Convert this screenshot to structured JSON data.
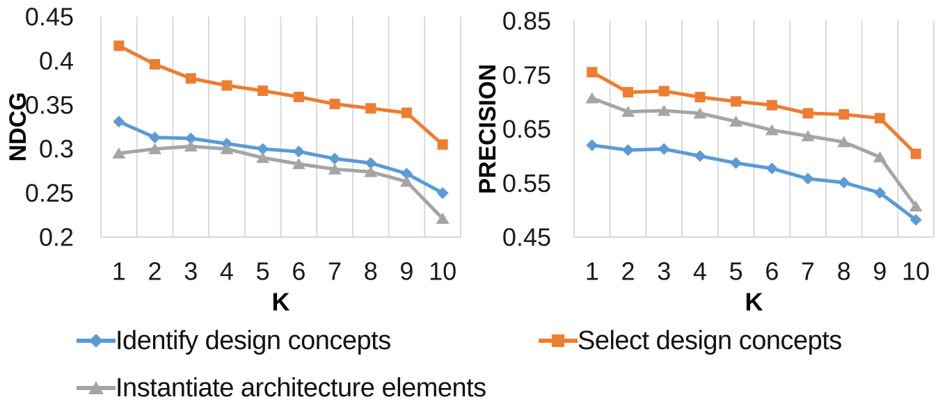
{
  "figure": {
    "background": "#ffffff"
  },
  "colors": {
    "blue": "#5B9BD5",
    "orange": "#ED7D31",
    "gray": "#A5A5A5",
    "gridline": "#D9D9D9",
    "axis_line": "#D9D9D9",
    "tick_text": "#1a1a1a",
    "title_text": "#000000"
  },
  "legend": {
    "position": "bottom",
    "items": [
      {
        "label": "Identify design concepts",
        "marker": "diamond",
        "color": "#5B9BD5"
      },
      {
        "label": "Select design concepts",
        "marker": "square",
        "color": "#ED7D31"
      },
      {
        "label": "Instantiate architecture elements",
        "marker": "triangle",
        "color": "#A5A5A5"
      }
    ]
  },
  "chart_data": [
    {
      "type": "line",
      "title": "",
      "xlabel": "K",
      "ylabel": "NDCG",
      "x": [
        1,
        2,
        3,
        4,
        5,
        6,
        7,
        8,
        9,
        10
      ],
      "xtick_labels": [
        "1",
        "2",
        "3",
        "4",
        "5",
        "6",
        "7",
        "8",
        "9",
        "10"
      ],
      "ylim": [
        0.2,
        0.45
      ],
      "yticks": [
        0.45,
        0.4,
        0.35,
        0.3,
        0.25,
        0.2
      ],
      "ytick_labels": [
        "0.45",
        "0.4",
        "0.35",
        "0.3",
        "0.25",
        "0.2"
      ],
      "grid": "vertical-only",
      "legend_shown_in_chart": false,
      "series": [
        {
          "name": "Identify design concepts",
          "marker": "diamond",
          "color": "#5B9BD5",
          "values": [
            0.331,
            0.313,
            0.312,
            0.306,
            0.3,
            0.297,
            0.289,
            0.284,
            0.272,
            0.25
          ]
        },
        {
          "name": "Select design concepts",
          "marker": "square",
          "color": "#ED7D31",
          "values": [
            0.417,
            0.396,
            0.38,
            0.372,
            0.366,
            0.359,
            0.351,
            0.346,
            0.341,
            0.305
          ]
        },
        {
          "name": "Instantiate architecture elements",
          "marker": "triangle",
          "color": "#A5A5A5",
          "values": [
            0.295,
            0.3,
            0.303,
            0.3,
            0.29,
            0.283,
            0.277,
            0.274,
            0.263,
            0.221
          ]
        }
      ]
    },
    {
      "type": "line",
      "title": "",
      "xlabel": "K",
      "ylabel": "PRECISION",
      "x": [
        1,
        2,
        3,
        4,
        5,
        6,
        7,
        8,
        9,
        10
      ],
      "xtick_labels": [
        "1",
        "2",
        "3",
        "4",
        "5",
        "6",
        "7",
        "8",
        "9",
        "10"
      ],
      "ylim": [
        0.45,
        0.85
      ],
      "yticks": [
        0.85,
        0.75,
        0.65,
        0.55,
        0.45
      ],
      "ytick_labels": [
        "0.85",
        "0.75",
        "0.65",
        "0.55",
        "0.45"
      ],
      "grid": "vertical-only",
      "legend_shown_in_chart": false,
      "series": [
        {
          "name": "Identify design concepts",
          "marker": "diamond",
          "color": "#5B9BD5",
          "values": [
            0.62,
            0.611,
            0.613,
            0.6,
            0.587,
            0.577,
            0.558,
            0.551,
            0.532,
            0.482
          ]
        },
        {
          "name": "Select design concepts",
          "marker": "square",
          "color": "#ED7D31",
          "values": [
            0.755,
            0.718,
            0.72,
            0.709,
            0.701,
            0.694,
            0.679,
            0.677,
            0.67,
            0.604
          ]
        },
        {
          "name": "Instantiate architecture elements",
          "marker": "triangle",
          "color": "#A5A5A5",
          "values": [
            0.707,
            0.682,
            0.684,
            0.679,
            0.664,
            0.648,
            0.637,
            0.626,
            0.598,
            0.507
          ]
        }
      ]
    }
  ]
}
